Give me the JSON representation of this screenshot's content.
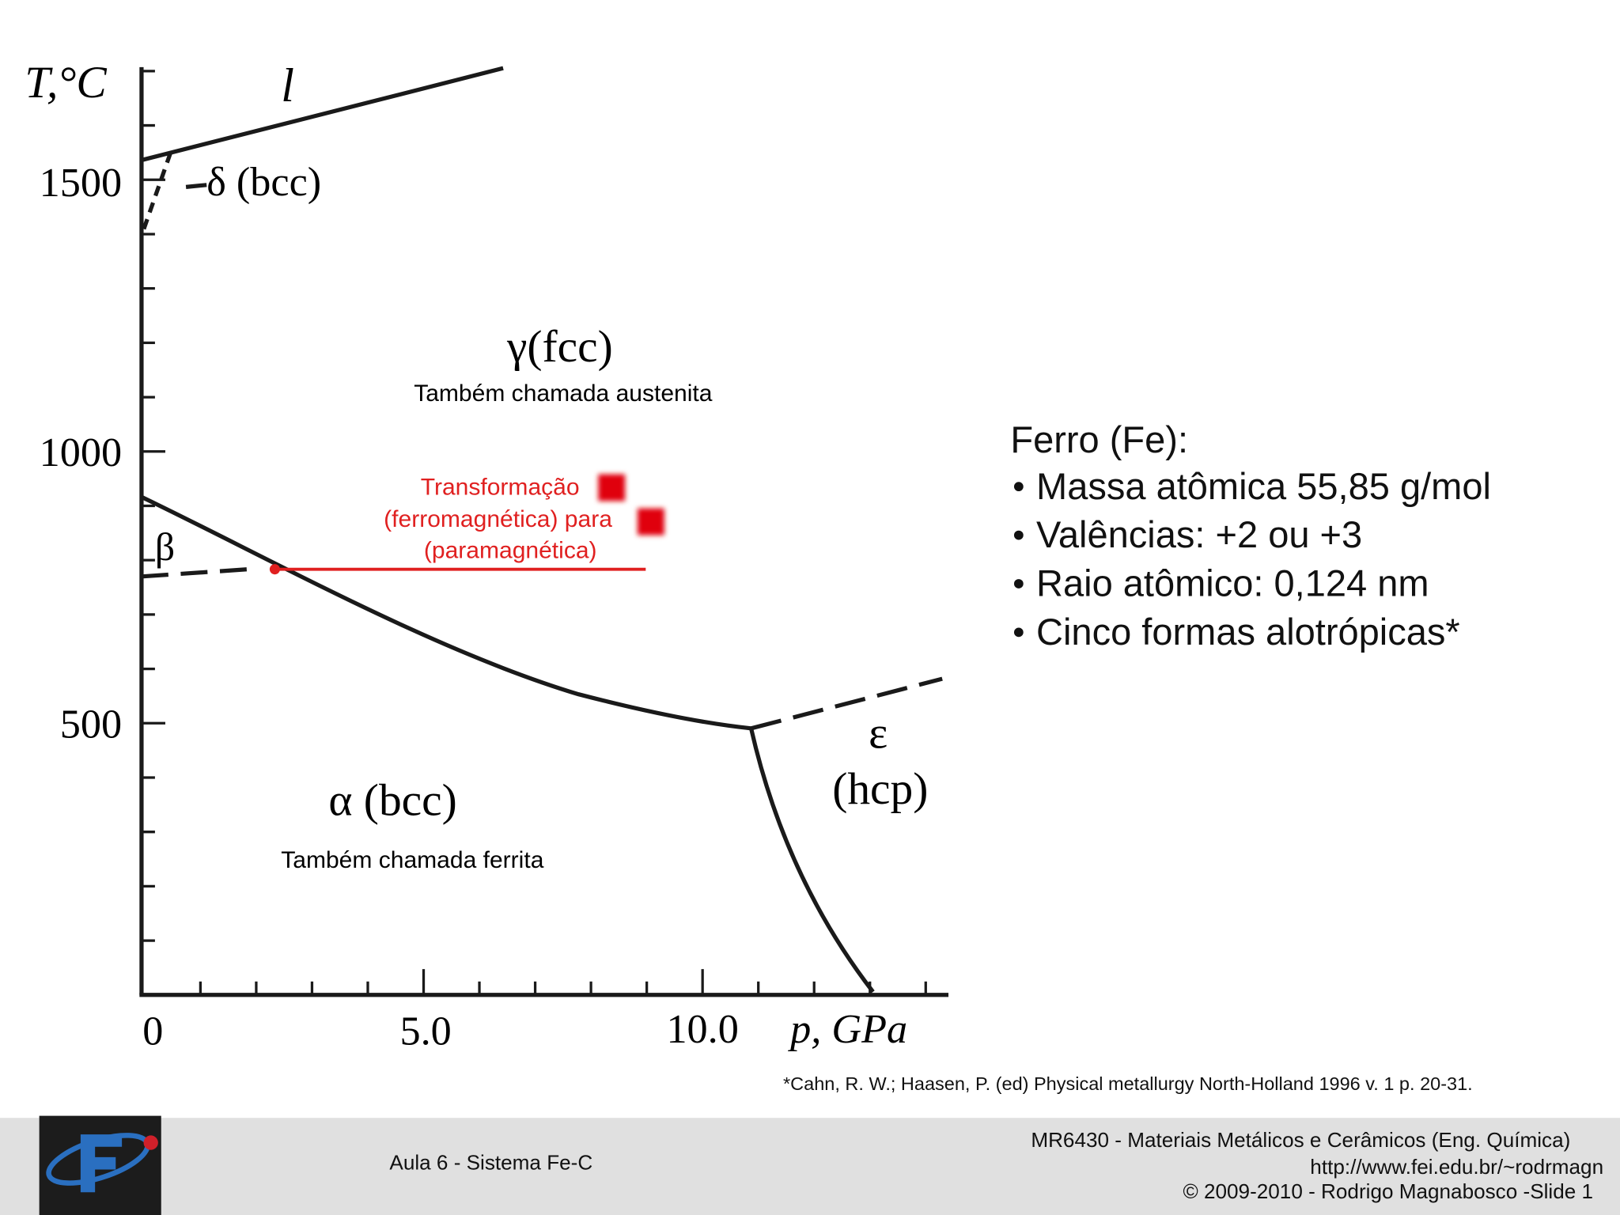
{
  "diagram": {
    "y_axis_label": "T,°C",
    "y_ticks": [
      "1500",
      "1000",
      "500"
    ],
    "x_ticks": [
      "0",
      "5.0",
      "10.0"
    ],
    "x_axis_label": "p, GPa",
    "phases": {
      "liquid": "l",
      "delta": "δ (bcc)",
      "gamma": "γ(fcc)",
      "gamma_note": "Também chamada austenita",
      "beta": "β",
      "alpha": "α (bcc)",
      "alpha_note": "Também chamada ferrita",
      "epsilon": "ε",
      "epsilon_structure": "(hcp)"
    },
    "transformation": [
      "Transformação",
      "(ferromagnética) para",
      "(paramagnética)"
    ]
  },
  "info": {
    "title": "Ferro (Fe):",
    "items": [
      "Massa atômica 55,85 g/mol",
      "Valências: +2 ou +3",
      "Raio atômico: 0,124 nm",
      "Cinco formas alotrópicas*"
    ]
  },
  "reference": "*Cahn, R. W.; Haasen, P. (ed)   Physical metallurgy  North-Holland    1996   v. 1   p. 20-31.",
  "footer": {
    "lecture": "Aula 6 - Sistema Fe-C",
    "course": "MR6430 - Materiais Metálicos e Cerâmicos (Eng. Química)",
    "url": "http://www.fei.edu.br/~rodrmagn",
    "copyright": "© 2009-2010 - Rodrigo Magnabosco -Slide 1"
  }
}
